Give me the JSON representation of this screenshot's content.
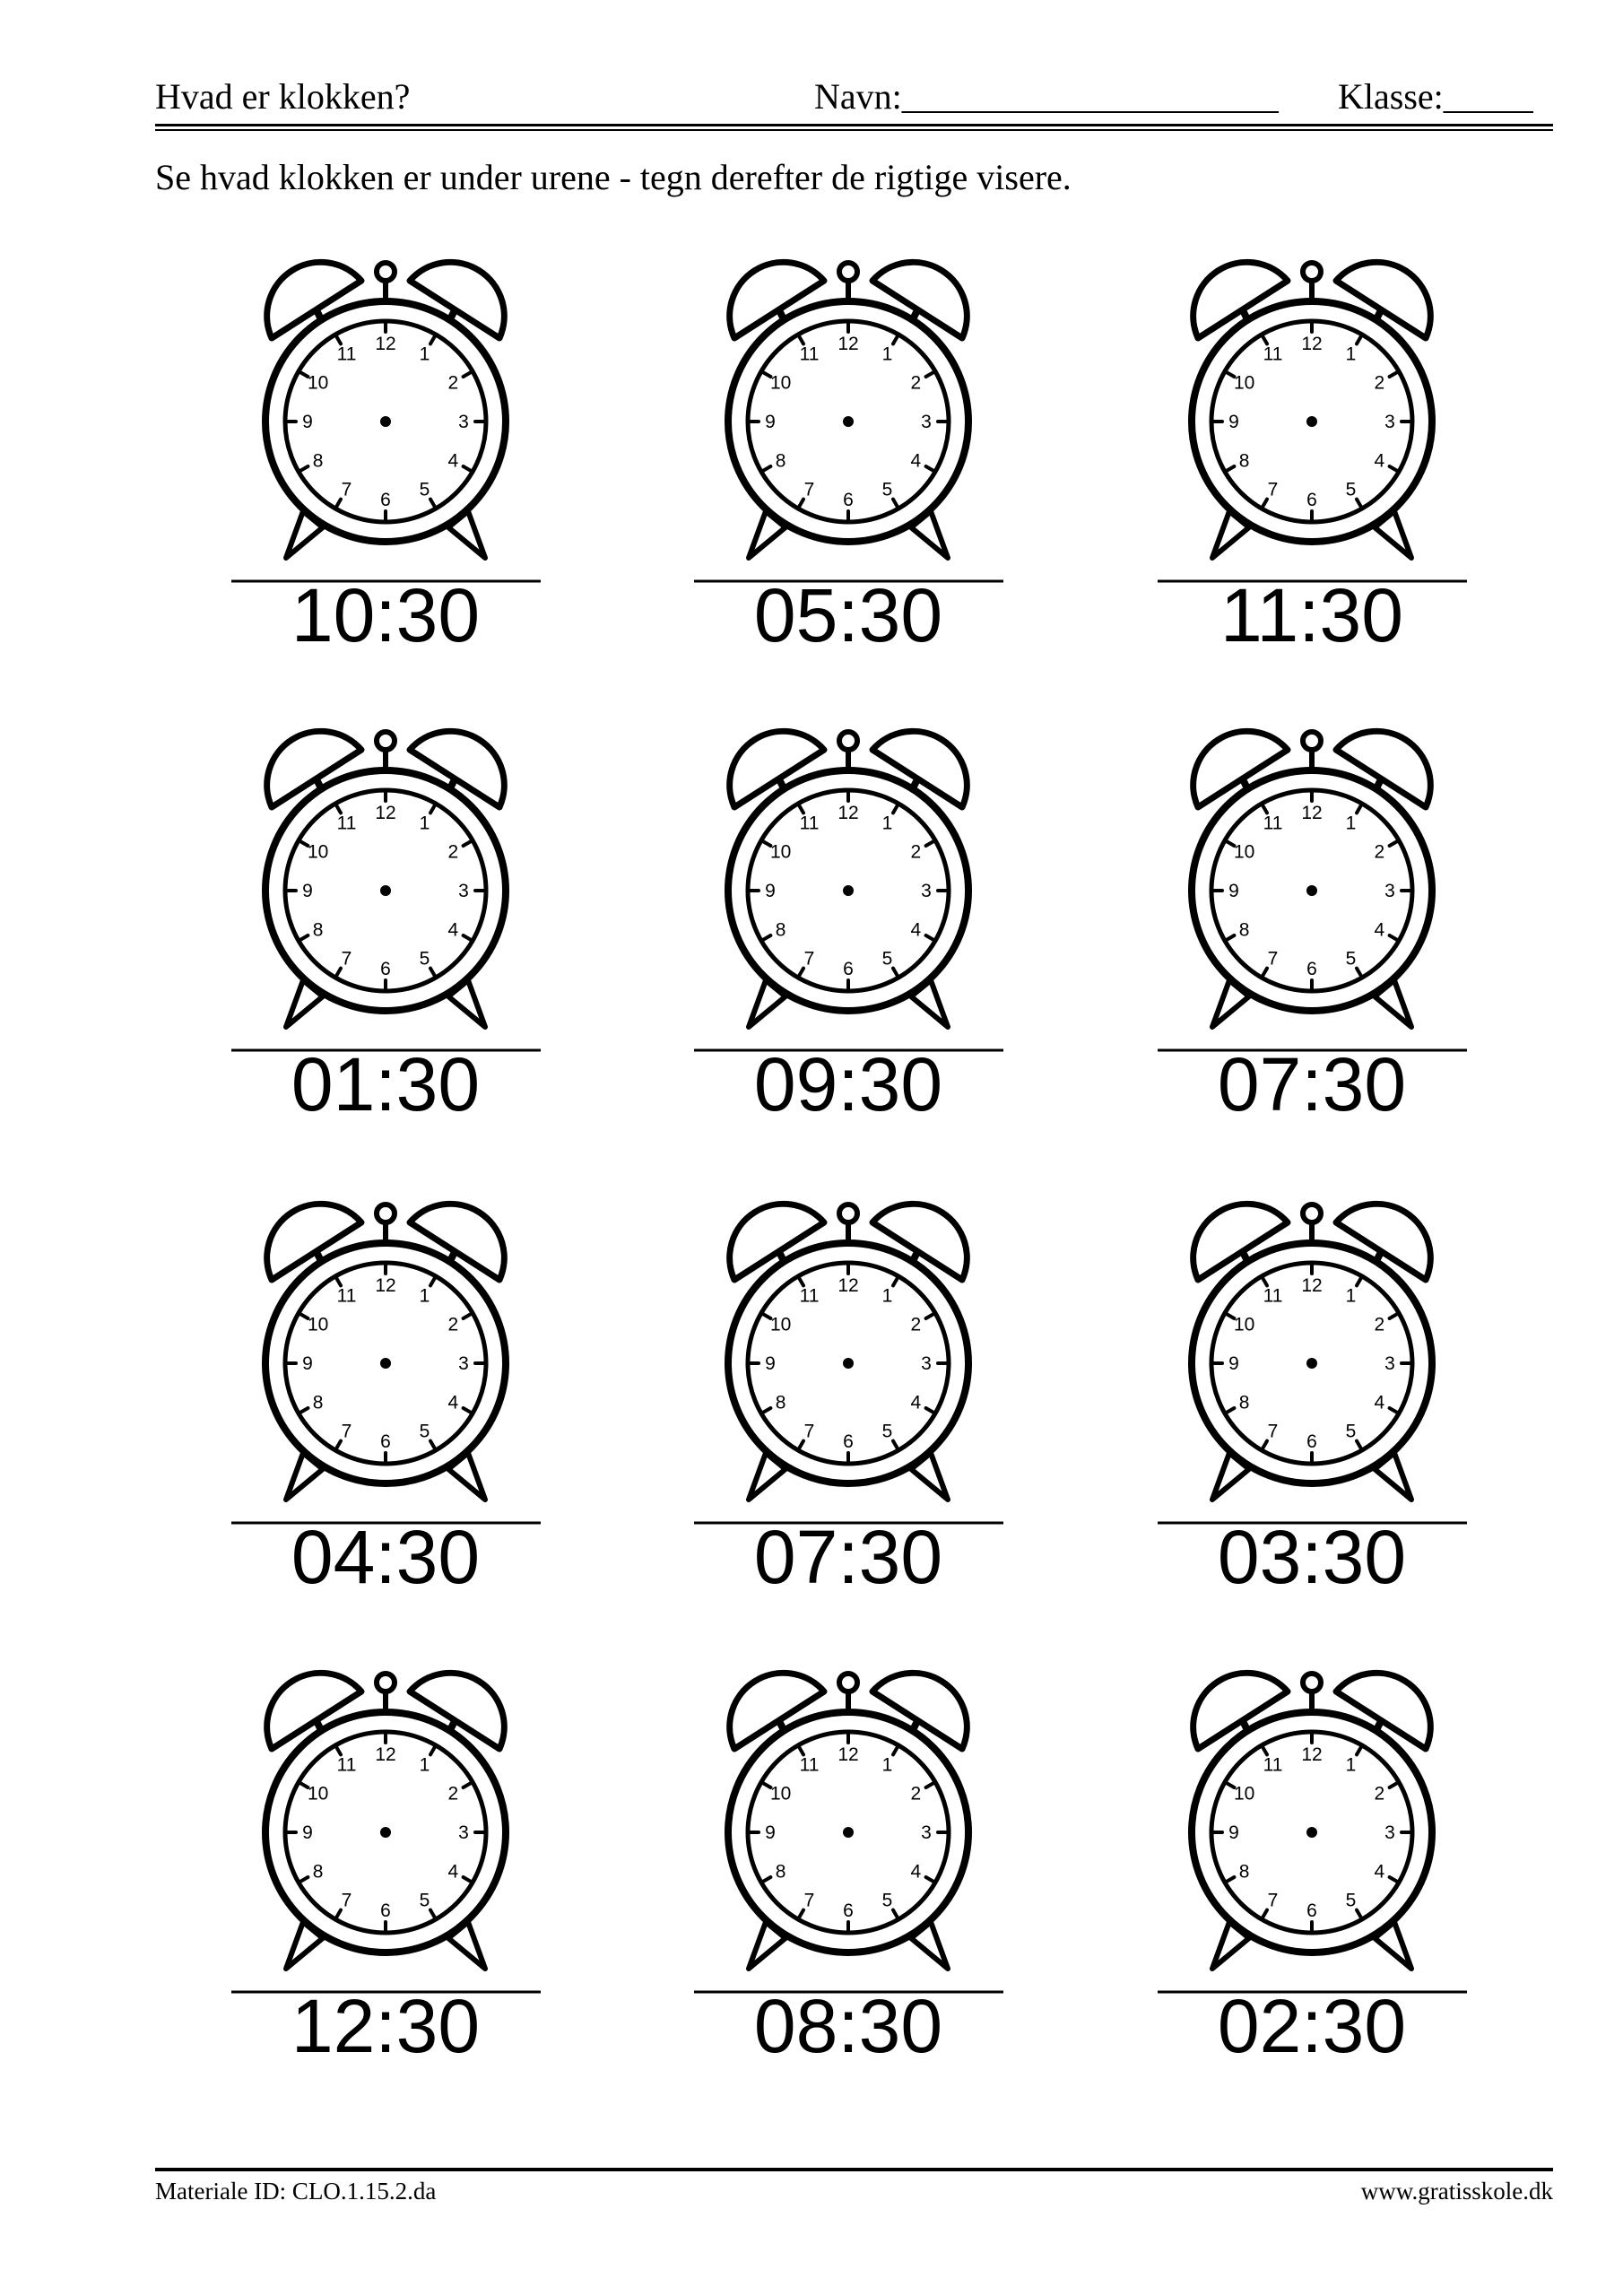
{
  "header": {
    "title": "Hvad er klokken?",
    "name_label": "Navn:_____________________",
    "class_label": "Klasse:_____"
  },
  "instruction": "Se hvad klokken er under urene - tegn derefter de rigtige visere.",
  "dial_numbers": [
    "12",
    "1",
    "2",
    "3",
    "4",
    "5",
    "6",
    "7",
    "8",
    "9",
    "10",
    "11"
  ],
  "clocks": [
    {
      "time": "10:30"
    },
    {
      "time": "05:30"
    },
    {
      "time": "11:30"
    },
    {
      "time": "01:30"
    },
    {
      "time": "09:30"
    },
    {
      "time": "07:30"
    },
    {
      "time": "04:30"
    },
    {
      "time": "07:30"
    },
    {
      "time": "03:30"
    },
    {
      "time": "12:30"
    },
    {
      "time": "08:30"
    },
    {
      "time": "02:30"
    }
  ],
  "footer": {
    "material_id": "Materiale ID: CLO.1.15.2.da",
    "website": "www.gratisskole.dk"
  }
}
